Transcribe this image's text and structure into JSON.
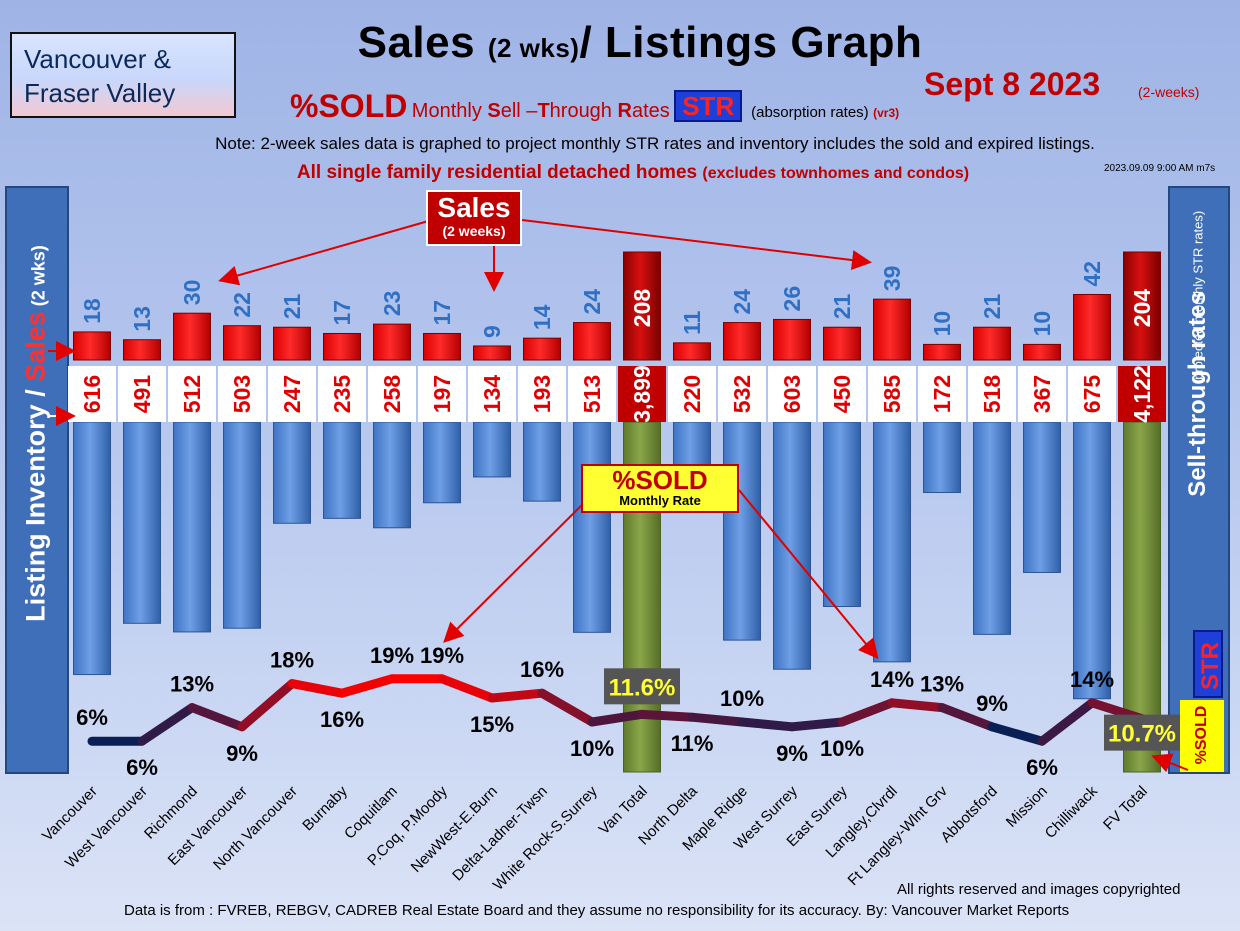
{
  "region": {
    "line1": "Vancouver &",
    "line2": "Fraser Valley"
  },
  "title": {
    "main": "Sales ",
    "small": "(2 wks)",
    "tail": "/ Listings Graph"
  },
  "date": {
    "text": "Sept 8  2023",
    "note": "(2-weeks)"
  },
  "subtitle": {
    "sold": "%SOLD",
    "part1": "Monthly ",
    "s1": "S",
    "part2": "ell –",
    "s2": "T",
    "part3": "hrough ",
    "s3": "R",
    "part4": "ates",
    "str": "STR",
    "absorption": "(absorption rates)",
    "version": "(vr3)"
  },
  "note": "Note: 2-week sales data is graphed to project monthly STR rates and inventory includes the sold and expired listings.",
  "stamp": "2023.09.09 9:00 AM m7s",
  "detached": {
    "main": "All single family residential detached homes ",
    "small": "(excludes townhomes and condos)"
  },
  "left_axis": {
    "part1": "Listing Inventory / ",
    "sales": "Sales",
    "small": " (2  wks)"
  },
  "right_axis": {
    "main": "Sell-through rates",
    "sub": "(projected monthly STR rates)",
    "str": "STR",
    "sold": "%SOLD"
  },
  "callouts": {
    "sales_title": "Sales",
    "sales_sub": "(2 weeks)",
    "sold_title": "%SOLD",
    "sold_sub": "Monthly Rate"
  },
  "footer": {
    "rights": "All rights reserved and  images copyrighted",
    "source": "Data is from : FVREB, REBGV, CADREB Real Estate Board and they assume no responsibility for its accuracy. By: Vancouver Market Reports"
  },
  "colors": {
    "sales_bar": "#ff0000",
    "total_sales_bar": "#b80000",
    "inventory_bar": "#4f86d4",
    "total_inventory_bar": "#76923c",
    "str_line_high": "#ff0000",
    "str_line_low": "#0a1f55"
  },
  "chart_data": {
    "type": "bar",
    "categories": [
      "Vancouver",
      "West Vancouver",
      "Richmond",
      "East Vancouver",
      "North Vancouver",
      "Burnaby",
      "Coquitlam",
      "P.Coq, P.Moody",
      "NewWest-E.Burn",
      "Delta-Ladner-Twsn",
      "White Rock-S.Surrey",
      "Van Total",
      "North Delta",
      "Maple Ridge",
      "West Surrey",
      "East Surrey",
      "Langley,Clvrdl",
      "Ft Langley-Wlnt Grv",
      "Abbotsford",
      "Mission",
      "Chilliwack",
      "FV Total"
    ],
    "series": [
      {
        "name": "Sales",
        "values": [
          18,
          13,
          30,
          22,
          21,
          17,
          23,
          17,
          9,
          14,
          24,
          208,
          11,
          24,
          26,
          21,
          39,
          10,
          21,
          10,
          42,
          204
        ],
        "labels": [
          "18",
          "13",
          "30",
          "22",
          "21",
          "17",
          "23",
          "17",
          "9",
          "14",
          "24",
          "208",
          "11",
          "24",
          "26",
          "21",
          "39",
          "10",
          "21",
          "10",
          "42",
          "204"
        ]
      },
      {
        "name": "Listing Inventory",
        "values": [
          616,
          491,
          512,
          503,
          247,
          235,
          258,
          197,
          134,
          193,
          513,
          3899,
          220,
          532,
          603,
          450,
          585,
          172,
          518,
          367,
          675,
          4122
        ],
        "labels": [
          "616",
          "491",
          "512",
          "503",
          "247",
          "235",
          "258",
          "197",
          "134",
          "193",
          "513",
          "3,899",
          "220",
          "532",
          "603",
          "450",
          "585",
          "172",
          "518",
          "367",
          "675",
          "4,122"
        ]
      },
      {
        "name": "%SOLD",
        "values": [
          6,
          6,
          13,
          9,
          18,
          16,
          19,
          19,
          15,
          16,
          10,
          11.6,
          11,
          10,
          9,
          10,
          14,
          13,
          9,
          6,
          14,
          10.7
        ],
        "labels": [
          "6%",
          "6%",
          "13%",
          "9%",
          "18%",
          "16%",
          "19%",
          "19%",
          "15%",
          "16%",
          "10%",
          "11.6%",
          "11%",
          "10%",
          "9%",
          "10%",
          "14%",
          "13%",
          "9%",
          "6%",
          "14%",
          "10.7%"
        ]
      }
    ],
    "totals_index": [
      11,
      21
    ]
  }
}
